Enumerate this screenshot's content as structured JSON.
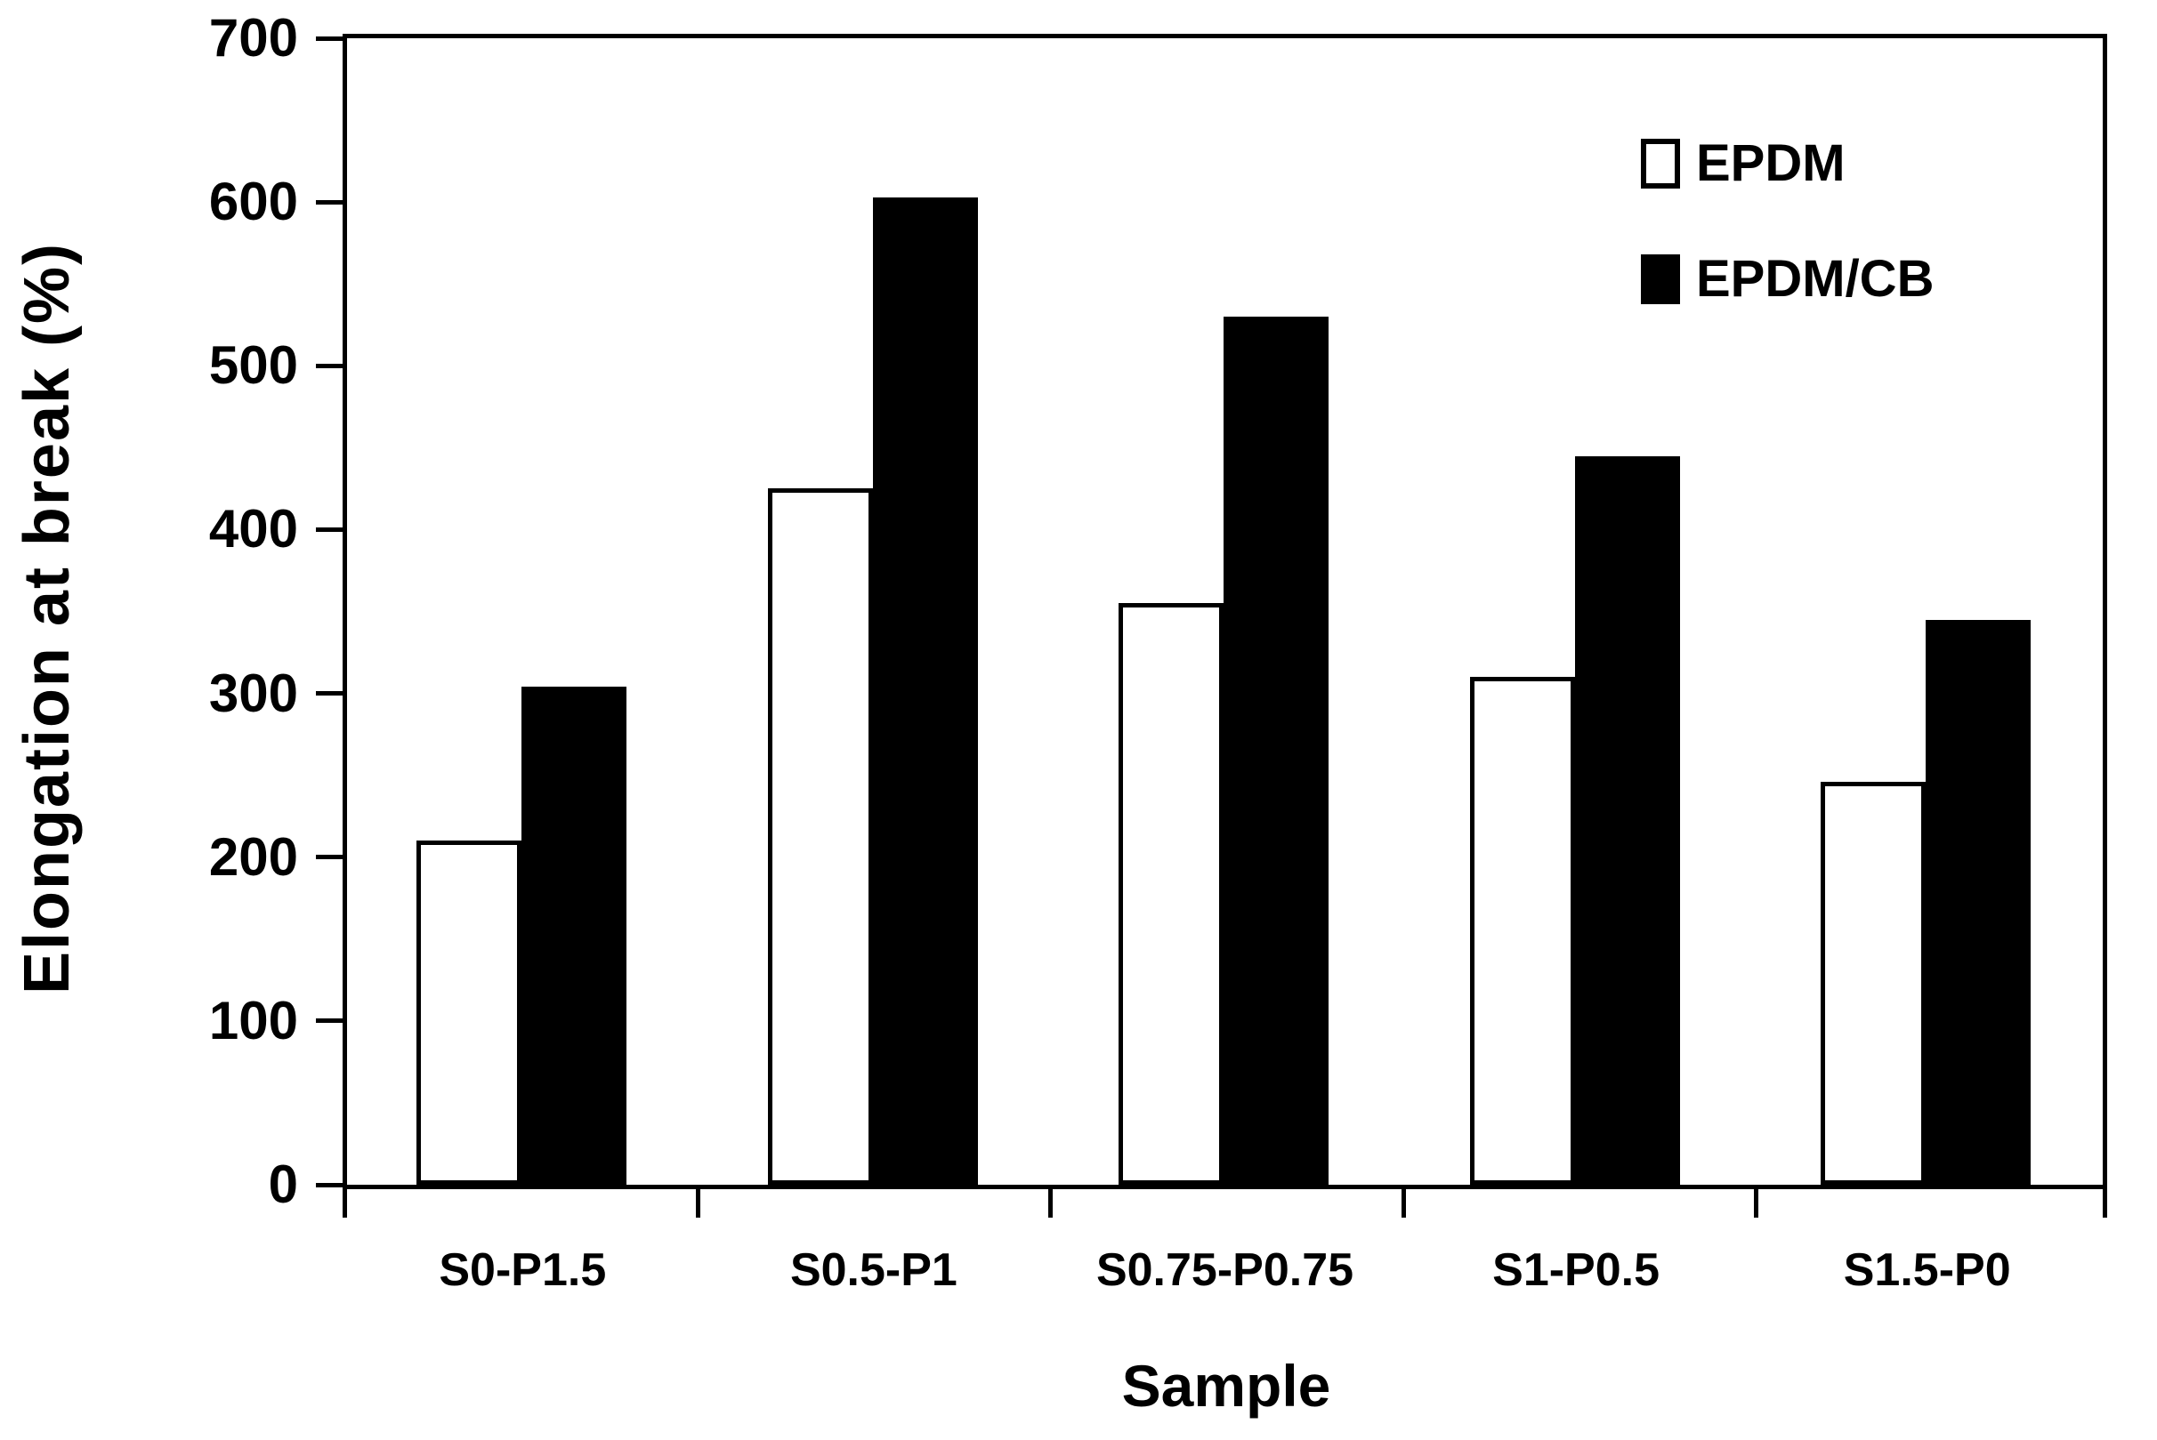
{
  "figure": {
    "background_color": "#ffffff",
    "ink_color": "#000000"
  },
  "chart_data": {
    "type": "bar",
    "title": "",
    "xlabel": "Sample",
    "ylabel": "Elongation at break (%)",
    "categories": [
      "S0-P1.5",
      "S0.5-P1",
      "S0.75-P0.75",
      "S1-P0.5",
      "S1.5-P0"
    ],
    "series": [
      {
        "name": "EPDM",
        "fill": "#ffffff",
        "outline": "#000000",
        "values": [
          210,
          425,
          355,
          310,
          246
        ]
      },
      {
        "name": "EPDM/CB",
        "fill": "#000000",
        "outline": "#000000",
        "values": [
          304,
          603,
          530,
          445,
          345
        ]
      }
    ],
    "ylim": [
      0,
      700
    ],
    "ytick_interval": 100,
    "yticks": [
      "0",
      "100",
      "200",
      "300",
      "400",
      "500",
      "600",
      "700"
    ],
    "grid": "off",
    "legend_position": "top-right-inside",
    "frame": "full-box"
  }
}
